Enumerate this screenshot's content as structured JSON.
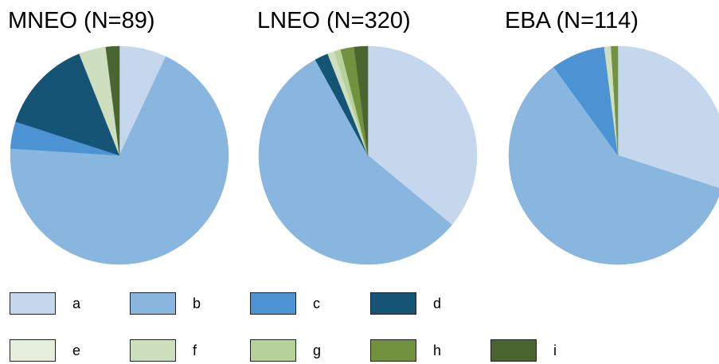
{
  "colors": {
    "a": "#c4d7ec",
    "b": "#89b6df",
    "c": "#4b93d3",
    "d": "#165476",
    "e": "#e5efdc",
    "f": "#cddfbe",
    "g": "#b7d19b",
    "h": "#72923f",
    "i": "#4a6530"
  },
  "chart_data": [
    {
      "type": "pie",
      "title": "MNEO (N=89)",
      "categories": [
        "a",
        "b",
        "c",
        "d",
        "e",
        "f",
        "g",
        "h",
        "i"
      ],
      "values": [
        7,
        69,
        4,
        14,
        0,
        4,
        0,
        0,
        2
      ]
    },
    {
      "type": "pie",
      "title": "LNEO (N=320)",
      "categories": [
        "a",
        "b",
        "c",
        "d",
        "e",
        "f",
        "g",
        "h",
        "i"
      ],
      "values": [
        36,
        56,
        0,
        2,
        0,
        1,
        1,
        2,
        2
      ]
    },
    {
      "type": "pie",
      "title": "EBA (N=114)",
      "categories": [
        "a",
        "b",
        "c",
        "d",
        "e",
        "f",
        "g",
        "h",
        "i"
      ],
      "values": [
        30,
        60,
        8,
        0,
        0,
        1,
        0,
        1,
        0
      ]
    }
  ],
  "legend": [
    [
      {
        "key": "a",
        "label": "a"
      },
      {
        "key": "b",
        "label": "b"
      },
      {
        "key": "c",
        "label": "c"
      },
      {
        "key": "d",
        "label": "d"
      }
    ],
    [
      {
        "key": "e",
        "label": "e"
      },
      {
        "key": "f",
        "label": "f"
      },
      {
        "key": "g",
        "label": "g"
      },
      {
        "key": "h",
        "label": "h"
      },
      {
        "key": "i",
        "label": "i"
      }
    ]
  ]
}
